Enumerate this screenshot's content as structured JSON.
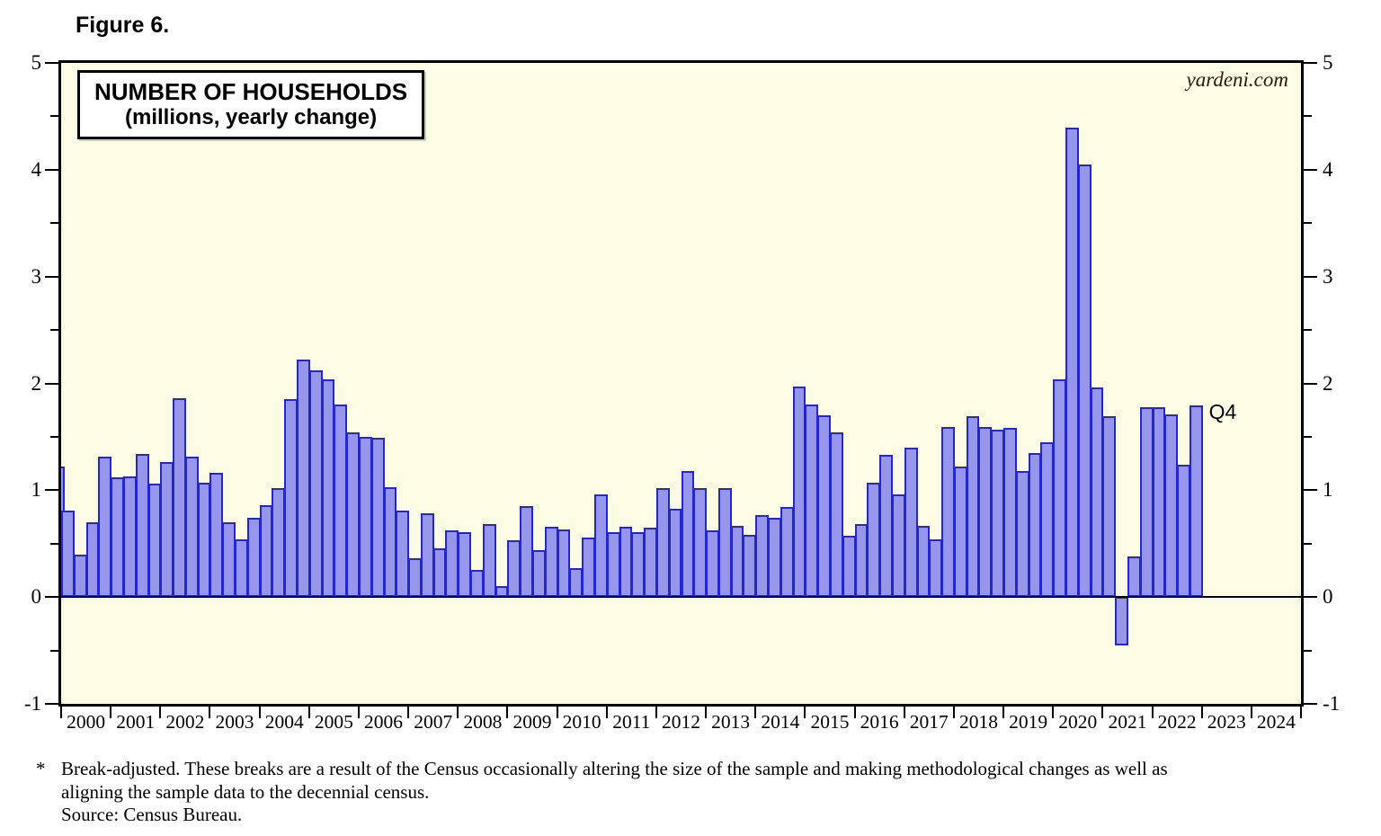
{
  "figure_label": "Figure 6.",
  "title_line1": "NUMBER OF HOUSEHOLDS",
  "title_line2": "(millions, yearly change)",
  "watermark": "yardeni.com",
  "annotation_q4": "Q4",
  "footnote": {
    "marker": "*",
    "line1": "Break-adjusted. These breaks are a result of the Census occasionally altering the size of the sample and making methodological changes as well as",
    "line2": "aligning the sample data to the decennial census.",
    "line3": "Source: Census Bureau."
  },
  "colors": {
    "plot_background": "#FCFCE4",
    "bar_fill": "#9596EC",
    "bar_border": "#2426CE",
    "axis": "#000000"
  },
  "chart_data": {
    "type": "bar",
    "title": "NUMBER OF HOUSEHOLDS (millions, yearly change)",
    "ylabel": "millions, yearly change",
    "ylim": [
      -1,
      5
    ],
    "y_major_ticks": [
      5,
      4,
      3,
      2,
      1,
      0,
      -1
    ],
    "y_minor_step": 0.5,
    "grid": "zero-line only",
    "legend": "none",
    "x_years": [
      2000,
      2001,
      2002,
      2003,
      2004,
      2005,
      2006,
      2007,
      2008,
      2009,
      2010,
      2011,
      2012,
      2013,
      2014,
      2015,
      2016,
      2017,
      2018,
      2019,
      2020,
      2021,
      2022,
      2023,
      2024
    ],
    "leading_partial_bar": {
      "note": "clipped bar at left plot edge",
      "value": 1.22
    },
    "last_bar_annotation": "Q4",
    "series": [
      {
        "year": 2000,
        "quarters": [
          0.81,
          0.4,
          0.7,
          1.31
        ]
      },
      {
        "year": 2001,
        "quarters": [
          1.12,
          1.13,
          1.34,
          1.06
        ]
      },
      {
        "year": 2002,
        "quarters": [
          1.26,
          1.86,
          1.31,
          1.07
        ]
      },
      {
        "year": 2003,
        "quarters": [
          1.16,
          0.7,
          0.54,
          0.74
        ]
      },
      {
        "year": 2004,
        "quarters": [
          0.86,
          1.02,
          1.85,
          2.22
        ]
      },
      {
        "year": 2005,
        "quarters": [
          2.12,
          2.04,
          1.8,
          1.54
        ]
      },
      {
        "year": 2006,
        "quarters": [
          1.5,
          1.49,
          1.03,
          0.81
        ]
      },
      {
        "year": 2007,
        "quarters": [
          0.36,
          0.78,
          0.46,
          0.62
        ]
      },
      {
        "year": 2008,
        "quarters": [
          0.61,
          0.25,
          0.68,
          0.1
        ]
      },
      {
        "year": 2009,
        "quarters": [
          0.53,
          0.85,
          0.44,
          0.66
        ]
      },
      {
        "year": 2010,
        "quarters": [
          0.63,
          0.27,
          0.56,
          0.96
        ]
      },
      {
        "year": 2011,
        "quarters": [
          0.61,
          0.66,
          0.61,
          0.65
        ]
      },
      {
        "year": 2012,
        "quarters": [
          1.02,
          0.83,
          1.18,
          1.02
        ]
      },
      {
        "year": 2013,
        "quarters": [
          0.62,
          1.02,
          0.67,
          0.58
        ]
      },
      {
        "year": 2014,
        "quarters": [
          0.77,
          0.74,
          0.84,
          1.97
        ]
      },
      {
        "year": 2015,
        "quarters": [
          1.8,
          1.7,
          1.54,
          0.57
        ]
      },
      {
        "year": 2016,
        "quarters": [
          0.68,
          1.07,
          1.33,
          0.96
        ]
      },
      {
        "year": 2017,
        "quarters": [
          1.4,
          0.67,
          0.54,
          1.59
        ]
      },
      {
        "year": 2018,
        "quarters": [
          1.22,
          1.69,
          1.59,
          1.57
        ]
      },
      {
        "year": 2019,
        "quarters": [
          1.58,
          1.18,
          1.35,
          1.45
        ]
      },
      {
        "year": 2020,
        "quarters": [
          2.04,
          4.39,
          4.05,
          1.96
        ]
      },
      {
        "year": 2021,
        "quarters": [
          1.69,
          -0.45,
          0.38,
          1.78
        ]
      },
      {
        "year": 2022,
        "quarters": [
          1.78,
          1.71,
          1.24,
          1.79
        ]
      }
    ]
  }
}
